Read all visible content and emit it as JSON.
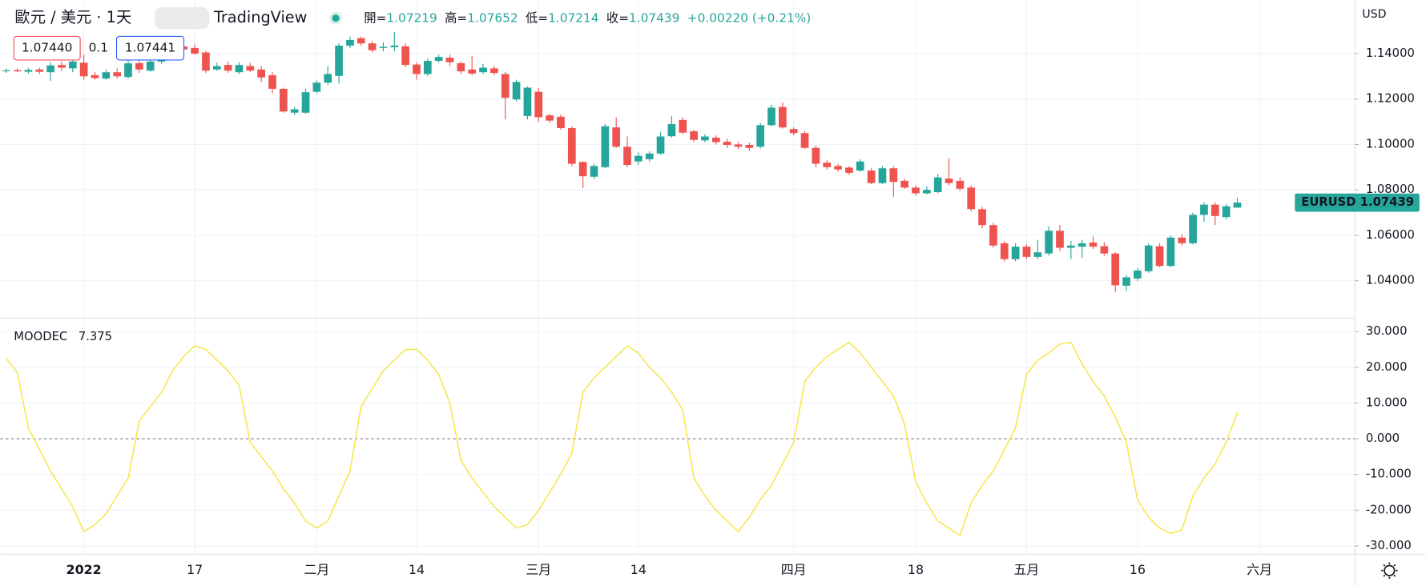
{
  "header": {
    "symbol": "歐元 / 美元 · 1天",
    "brand": "TradingView",
    "open_label": "開=",
    "high_label": "高=",
    "low_label": "低=",
    "close_label": "收=",
    "change": "+0.00220 (+0.21%)",
    "sell": "1.07440",
    "spread": "0.1",
    "buy": "1.07441",
    "currency": "USD",
    "ticker": "EURUSD"
  },
  "chart_data": [
    {
      "type": "candlestick",
      "up_color": "#26a69a",
      "down_color": "#ef5350",
      "open": [
        1.1322,
        1.1327,
        1.132,
        1.133,
        1.1318,
        1.135,
        1.1335,
        1.136,
        1.1305,
        1.129,
        1.1318,
        1.1297,
        1.1358,
        1.1325,
        1.1365,
        1.141,
        1.1432,
        1.1425,
        1.1405,
        1.133,
        1.135,
        1.1318,
        1.1345,
        1.133,
        1.1305,
        1.1245,
        1.114,
        1.114,
        1.1232,
        1.1272,
        1.1302,
        1.1435,
        1.1468,
        1.1445,
        1.1425,
        1.1428,
        1.1432,
        1.1352,
        1.131,
        1.1368,
        1.1382,
        1.1358,
        1.133,
        1.1318,
        1.1335,
        1.131,
        1.1198,
        1.1125,
        1.1232,
        1.1128,
        1.1122,
        1.1072,
        1.0923,
        1.0858,
        1.09,
        1.1075,
        1.099,
        1.0925,
        1.0935,
        1.096,
        1.1036,
        1.1108,
        1.1058,
        1.1018,
        1.103,
        1.1012,
        1.1,
        1.0998,
        1.099,
        1.1085,
        1.1165,
        1.1068,
        1.105,
        1.0985,
        1.092,
        1.0905,
        1.0898,
        1.0885,
        1.0885,
        1.083,
        1.0895,
        1.084,
        1.081,
        1.0785,
        1.079,
        1.085,
        1.084,
        1.081,
        1.0715,
        1.0645,
        1.0565,
        1.0495,
        1.055,
        1.0505,
        1.052,
        1.062,
        1.0545,
        1.055,
        1.0568,
        1.0552,
        1.052,
        1.0378,
        1.041,
        1.0442,
        1.0552,
        1.0465,
        1.059,
        1.0565,
        1.069,
        1.0735,
        1.068,
        1.07219
      ],
      "high": [
        1.1335,
        1.1335,
        1.1336,
        1.1338,
        1.1362,
        1.1365,
        1.1385,
        1.1395,
        1.1318,
        1.133,
        1.1335,
        1.1375,
        1.1385,
        1.1385,
        1.1425,
        1.1445,
        1.1445,
        1.144,
        1.1412,
        1.136,
        1.1365,
        1.1362,
        1.136,
        1.1345,
        1.1318,
        1.125,
        1.1165,
        1.1245,
        1.1282,
        1.1345,
        1.1445,
        1.1475,
        1.1475,
        1.1455,
        1.145,
        1.1495,
        1.1445,
        1.1362,
        1.1378,
        1.1395,
        1.1395,
        1.1365,
        1.139,
        1.1355,
        1.1345,
        1.132,
        1.1285,
        1.1255,
        1.1248,
        1.1135,
        1.1132,
        1.108,
        1.0925,
        1.0915,
        1.109,
        1.112,
        1.1035,
        1.0965,
        1.097,
        1.1055,
        1.1125,
        1.112,
        1.1065,
        1.1045,
        1.104,
        1.1025,
        1.101,
        1.1008,
        1.1095,
        1.1175,
        1.1185,
        1.1075,
        1.106,
        1.0995,
        1.093,
        1.0915,
        1.0905,
        1.0935,
        1.0895,
        1.0905,
        1.0905,
        1.085,
        1.082,
        1.0815,
        1.087,
        1.094,
        1.0855,
        1.082,
        1.0725,
        1.0655,
        1.0575,
        1.0565,
        1.056,
        1.058,
        1.064,
        1.0645,
        1.0575,
        1.058,
        1.0595,
        1.057,
        1.0525,
        1.0425,
        1.0455,
        1.0565,
        1.0565,
        1.06,
        1.0605,
        1.07,
        1.0745,
        1.0745,
        1.0738,
        1.07652
      ],
      "low": [
        1.1315,
        1.1318,
        1.1312,
        1.131,
        1.128,
        1.1325,
        1.1318,
        1.1285,
        1.1285,
        1.1285,
        1.129,
        1.129,
        1.1315,
        1.132,
        1.1355,
        1.14,
        1.1405,
        1.1395,
        1.1315,
        1.1325,
        1.1315,
        1.131,
        1.1318,
        1.1275,
        1.1225,
        1.114,
        1.113,
        1.1135,
        1.1225,
        1.1262,
        1.1268,
        1.1425,
        1.1435,
        1.1405,
        1.141,
        1.141,
        1.134,
        1.1285,
        1.1302,
        1.136,
        1.1345,
        1.131,
        1.1305,
        1.131,
        1.1305,
        1.111,
        1.119,
        1.111,
        1.11,
        1.1095,
        1.1065,
        1.0905,
        1.0808,
        1.0848,
        1.0895,
        1.0985,
        1.09,
        1.091,
        1.0925,
        1.0955,
        1.103,
        1.1045,
        1.101,
        1.101,
        1.1,
        1.0985,
        1.098,
        1.0972,
        1.0982,
        1.108,
        1.107,
        1.104,
        1.098,
        1.09,
        1.089,
        1.088,
        1.0865,
        1.088,
        1.0825,
        1.0825,
        1.077,
        1.0805,
        1.0775,
        1.078,
        1.0785,
        1.082,
        1.0795,
        1.0705,
        1.063,
        1.0545,
        1.0485,
        1.0485,
        1.0495,
        1.0495,
        1.051,
        1.053,
        1.0495,
        1.05,
        1.054,
        1.051,
        1.035,
        1.0355,
        1.0398,
        1.0435,
        1.046,
        1.046,
        1.0555,
        1.056,
        1.066,
        1.0645,
        1.067,
        1.07214
      ],
      "close": [
        1.1326,
        1.1322,
        1.1328,
        1.132,
        1.1348,
        1.1338,
        1.1365,
        1.13,
        1.1292,
        1.1318,
        1.13,
        1.1357,
        1.133,
        1.1365,
        1.141,
        1.143,
        1.1418,
        1.14,
        1.1325,
        1.1345,
        1.1325,
        1.135,
        1.1325,
        1.1295,
        1.1245,
        1.1145,
        1.1155,
        1.123,
        1.1272,
        1.131,
        1.1435,
        1.146,
        1.1445,
        1.1415,
        1.143,
        1.1435,
        1.135,
        1.131,
        1.1368,
        1.1385,
        1.1362,
        1.1322,
        1.1312,
        1.1338,
        1.1315,
        1.1205,
        1.1275,
        1.125,
        1.112,
        1.1105,
        1.1072,
        1.0915,
        1.086,
        1.0905,
        1.108,
        1.099,
        1.091,
        1.095,
        1.096,
        1.1035,
        1.109,
        1.1052,
        1.102,
        1.1035,
        1.101,
        1.0998,
        1.099,
        1.0985,
        1.1085,
        1.1162,
        1.1075,
        1.105,
        1.0985,
        1.0915,
        1.09,
        1.089,
        1.0875,
        1.0925,
        1.083,
        1.0895,
        1.0835,
        1.081,
        1.0785,
        1.08,
        1.0855,
        1.083,
        1.0805,
        1.0715,
        1.0645,
        1.0555,
        1.0495,
        1.055,
        1.0505,
        1.0525,
        1.062,
        1.0545,
        1.0555,
        1.0565,
        1.055,
        1.052,
        1.038,
        1.0415,
        1.0445,
        1.0555,
        1.0465,
        1.059,
        1.0565,
        1.069,
        1.0735,
        1.0685,
        1.0728,
        1.07439
      ],
      "xlim": [
        -0.54,
        121.6
      ],
      "ylim": [
        1.0236,
        1.1636
      ],
      "yticks": [
        {
          "value": 1.04,
          "label": "1.04000"
        },
        {
          "value": 1.06,
          "label": "1.06000"
        },
        {
          "value": 1.08,
          "label": "1.08000"
        },
        {
          "value": 1.1,
          "label": "1.10000"
        },
        {
          "value": 1.12,
          "label": "1.12000"
        },
        {
          "value": 1.14,
          "label": "1.14000"
        }
      ],
      "grid": true
    },
    {
      "type": "line",
      "series": [
        {
          "name": "MOODEC",
          "color": "#f5e642",
          "values": [
            22.5,
            18.5,
            3,
            -3,
            -9,
            -14,
            -19,
            -26,
            -24,
            -21,
            -16,
            -11,
            5,
            9,
            13,
            19,
            23,
            26,
            25,
            22,
            19,
            15,
            -1,
            -5,
            -9,
            -14,
            -18,
            -23,
            -25,
            -23,
            -16,
            -9,
            9,
            14,
            19,
            22,
            25,
            25,
            22,
            18,
            10,
            -6,
            -11,
            -15,
            -19,
            -22,
            -25,
            -24,
            -20,
            -15,
            -10,
            -4,
            13,
            17,
            20,
            23,
            26,
            24,
            20,
            17,
            13,
            8,
            -11,
            -16,
            -20,
            -23,
            -26,
            -22,
            -17,
            -13,
            -7,
            -1,
            16,
            20,
            23,
            25,
            27,
            24,
            20,
            16,
            12,
            4,
            -12,
            -18,
            -23,
            -25,
            -27,
            -18,
            -13,
            -9,
            -3,
            3,
            18,
            22,
            24,
            26.5,
            27,
            21,
            16,
            12,
            6,
            -1,
            -17,
            -22,
            -25,
            -26.5,
            -25.5,
            -16,
            -11,
            -7,
            -1,
            7.375
          ]
        }
      ],
      "xlim": [
        -0.54,
        121.6
      ],
      "ylim": [
        -32.3,
        33.8
      ],
      "yticks": [
        {
          "value": -30,
          "label": "-30.000"
        },
        {
          "value": -20,
          "label": "-20.000"
        },
        {
          "value": -10,
          "label": "-10.000"
        },
        {
          "value": 0,
          "label": "0.000"
        },
        {
          "value": 10,
          "label": "10.000"
        },
        {
          "value": 20,
          "label": "20.000"
        },
        {
          "value": 30,
          "label": "30.000"
        }
      ],
      "xticks": [
        {
          "value": 7,
          "label": "2022"
        },
        {
          "value": 17,
          "label": "17"
        },
        {
          "value": 28,
          "label": "二月"
        },
        {
          "value": 37,
          "label": "14"
        },
        {
          "value": 48,
          "label": "三月"
        },
        {
          "value": 57,
          "label": "14"
        },
        {
          "value": 71,
          "label": "四月"
        },
        {
          "value": 82,
          "label": "18"
        },
        {
          "value": 92,
          "label": "五月"
        },
        {
          "value": 102,
          "label": "16"
        },
        {
          "value": 113,
          "label": "六月"
        }
      ],
      "grid": true
    }
  ]
}
